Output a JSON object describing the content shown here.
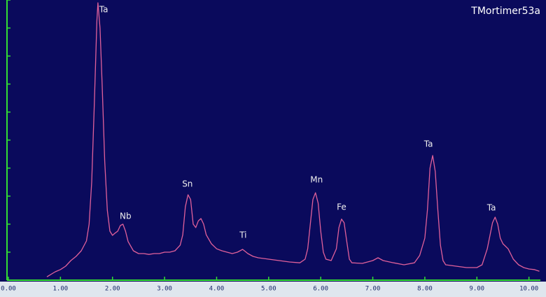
{
  "chart_data": {
    "type": "line",
    "title": "TMortimer53a",
    "background": "#0a0a5c",
    "axis_color": "#33dd33",
    "line_color": "#e0609a",
    "grid": false,
    "xlim": [
      0,
      10.22
    ],
    "ylim": [
      0,
      10
    ],
    "xticks": [
      {
        "value": 0,
        "label": "0.00"
      },
      {
        "value": 1,
        "label": "1.00"
      },
      {
        "value": 2,
        "label": "2.00"
      },
      {
        "value": 3,
        "label": "3.00"
      },
      {
        "value": 4,
        "label": "4.00"
      },
      {
        "value": 5,
        "label": "5.00"
      },
      {
        "value": 6,
        "label": "6.00"
      },
      {
        "value": 7,
        "label": "7.00"
      },
      {
        "value": 8,
        "label": "8.00"
      },
      {
        "value": 9,
        "label": "9.00"
      },
      {
        "value": 10,
        "label": "10.00"
      }
    ],
    "yticks": [
      0,
      1,
      2,
      3,
      4,
      5,
      6,
      7,
      8,
      9,
      10
    ],
    "x": [
      0.74,
      0.9,
      1.0,
      1.1,
      1.2,
      1.3,
      1.4,
      1.5,
      1.55,
      1.6,
      1.65,
      1.7,
      1.72,
      1.76,
      1.8,
      1.85,
      1.9,
      1.95,
      2.0,
      2.05,
      2.1,
      2.15,
      2.2,
      2.25,
      2.3,
      2.4,
      2.5,
      2.6,
      2.7,
      2.8,
      2.9,
      3.0,
      3.1,
      3.2,
      3.3,
      3.35,
      3.4,
      3.45,
      3.5,
      3.55,
      3.6,
      3.65,
      3.7,
      3.75,
      3.8,
      3.9,
      4.0,
      4.1,
      4.2,
      4.3,
      4.4,
      4.5,
      4.6,
      4.7,
      4.8,
      5.0,
      5.2,
      5.4,
      5.6,
      5.7,
      5.75,
      5.8,
      5.85,
      5.9,
      5.95,
      6.0,
      6.05,
      6.1,
      6.2,
      6.3,
      6.35,
      6.4,
      6.45,
      6.5,
      6.55,
      6.6,
      6.8,
      7.0,
      7.1,
      7.2,
      7.4,
      7.6,
      7.8,
      7.9,
      8.0,
      8.05,
      8.1,
      8.15,
      8.2,
      8.25,
      8.3,
      8.35,
      8.4,
      8.6,
      8.8,
      9.0,
      9.1,
      9.2,
      9.3,
      9.35,
      9.4,
      9.45,
      9.5,
      9.6,
      9.7,
      9.8,
      9.9,
      10.0,
      10.1,
      10.2
    ],
    "values": [
      0.12,
      0.3,
      0.38,
      0.5,
      0.7,
      0.85,
      1.05,
      1.4,
      2.0,
      3.5,
      6.25,
      9.25,
      9.9,
      9.0,
      7.0,
      4.25,
      2.5,
      1.75,
      1.6,
      1.68,
      1.75,
      1.95,
      2.0,
      1.75,
      1.38,
      1.05,
      0.95,
      0.95,
      0.92,
      0.95,
      0.95,
      1.0,
      1.0,
      1.05,
      1.25,
      1.62,
      2.62,
      3.05,
      2.88,
      2.0,
      1.88,
      2.12,
      2.2,
      2.0,
      1.62,
      1.3,
      1.12,
      1.05,
      1.0,
      0.95,
      1.0,
      1.1,
      0.95,
      0.85,
      0.8,
      0.75,
      0.7,
      0.65,
      0.62,
      0.75,
      1.12,
      2.0,
      2.88,
      3.12,
      2.75,
      1.75,
      1.0,
      0.75,
      0.7,
      1.12,
      1.88,
      2.18,
      2.05,
      1.38,
      0.75,
      0.62,
      0.6,
      0.7,
      0.8,
      0.7,
      0.62,
      0.55,
      0.62,
      0.88,
      1.5,
      2.5,
      4.0,
      4.45,
      3.88,
      2.5,
      1.25,
      0.7,
      0.55,
      0.5,
      0.45,
      0.45,
      0.55,
      1.12,
      2.05,
      2.25,
      2.0,
      1.5,
      1.3,
      1.12,
      0.75,
      0.55,
      0.45,
      0.4,
      0.38,
      0.32
    ],
    "annotations": [
      {
        "text": "Ta",
        "x": 1.83,
        "y": 9.65
      },
      {
        "text": "Nb",
        "x": 2.25,
        "y": 2.28
      },
      {
        "text": "Sn",
        "x": 3.44,
        "y": 3.42
      },
      {
        "text": "Ti",
        "x": 4.51,
        "y": 1.6
      },
      {
        "text": "Mn",
        "x": 5.92,
        "y": 3.58
      },
      {
        "text": "Fe",
        "x": 6.4,
        "y": 2.6
      },
      {
        "text": "Ta",
        "x": 8.07,
        "y": 4.85
      },
      {
        "text": "Ta",
        "x": 9.28,
        "y": 2.58
      }
    ]
  }
}
